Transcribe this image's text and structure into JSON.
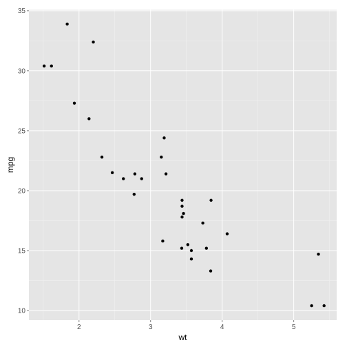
{
  "chart_data": {
    "type": "scatter",
    "title": "",
    "xlabel": "wt",
    "ylabel": "mpg",
    "xlim": [
      1.3,
      5.6
    ],
    "ylim": [
      9.2,
      35.1
    ],
    "x_ticks": [
      2,
      3,
      4,
      5
    ],
    "x_tick_labels": [
      "2",
      "3",
      "4",
      "5"
    ],
    "y_ticks": [
      10,
      15,
      20,
      25,
      30,
      35
    ],
    "y_tick_labels": [
      "10",
      "15",
      "20",
      "25",
      "30",
      "35"
    ],
    "grid": true,
    "legend": "none",
    "colors": {
      "panel_background": "#e5e5e5",
      "major_grid": "#ffffff",
      "minor_grid": "#f2f2f2",
      "point": "#000000"
    },
    "points": [
      {
        "x": 2.62,
        "y": 21.0
      },
      {
        "x": 2.875,
        "y": 21.0
      },
      {
        "x": 2.32,
        "y": 22.8
      },
      {
        "x": 3.215,
        "y": 21.4
      },
      {
        "x": 3.44,
        "y": 18.7
      },
      {
        "x": 3.46,
        "y": 18.1
      },
      {
        "x": 3.57,
        "y": 14.3
      },
      {
        "x": 3.19,
        "y": 24.4
      },
      {
        "x": 3.15,
        "y": 22.8
      },
      {
        "x": 3.44,
        "y": 19.2
      },
      {
        "x": 3.44,
        "y": 17.8
      },
      {
        "x": 4.07,
        "y": 16.4
      },
      {
        "x": 3.73,
        "y": 17.3
      },
      {
        "x": 3.78,
        "y": 15.2
      },
      {
        "x": 5.25,
        "y": 10.4
      },
      {
        "x": 5.424,
        "y": 10.4
      },
      {
        "x": 5.345,
        "y": 14.7
      },
      {
        "x": 2.2,
        "y": 32.4
      },
      {
        "x": 1.615,
        "y": 30.4
      },
      {
        "x": 1.835,
        "y": 33.9
      },
      {
        "x": 2.465,
        "y": 21.5
      },
      {
        "x": 3.52,
        "y": 15.5
      },
      {
        "x": 3.435,
        "y": 15.2
      },
      {
        "x": 3.84,
        "y": 13.3
      },
      {
        "x": 3.845,
        "y": 19.2
      },
      {
        "x": 1.935,
        "y": 27.3
      },
      {
        "x": 2.14,
        "y": 26.0
      },
      {
        "x": 1.513,
        "y": 30.4
      },
      {
        "x": 3.17,
        "y": 15.8
      },
      {
        "x": 2.77,
        "y": 19.7
      },
      {
        "x": 3.57,
        "y": 15.0
      },
      {
        "x": 2.78,
        "y": 21.4
      }
    ]
  }
}
